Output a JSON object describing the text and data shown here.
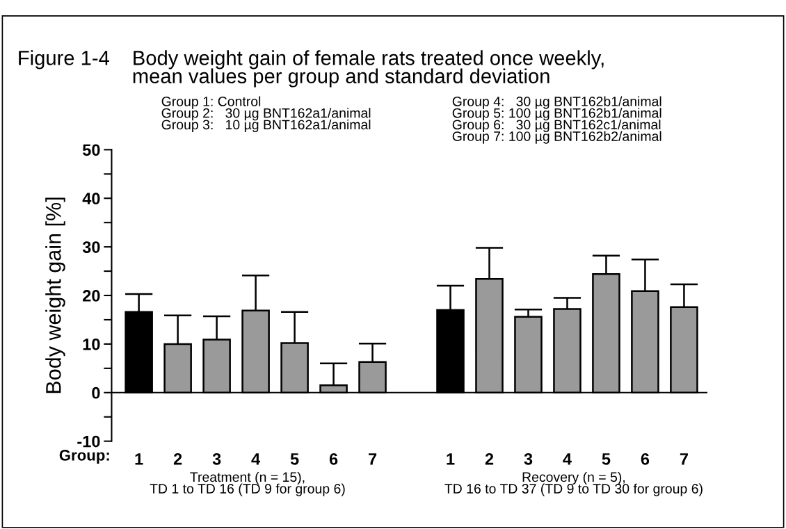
{
  "chart_data": {
    "type": "bar",
    "title": "Figure 1-4",
    "subtitle": "Body weight gain of female rats treated once weekly,\nmean values per group and standard deviation",
    "ylabel": "Body weight gain [%]",
    "xlabel": "Group:",
    "categories": [
      "1",
      "2",
      "3",
      "4",
      "5",
      "6",
      "7",
      null,
      "1",
      "2",
      "3",
      "4",
      "5",
      "6",
      "7"
    ],
    "values": [
      16.6,
      10.0,
      10.9,
      16.9,
      10.2,
      1.5,
      6.3,
      null,
      17.0,
      23.4,
      15.6,
      17.2,
      24.4,
      20.9,
      17.6
    ],
    "errors": [
      [
        16.6,
        20.3
      ],
      [
        10.0,
        15.9
      ],
      [
        10.9,
        15.7
      ],
      [
        16.9,
        24.1
      ],
      [
        10.2,
        16.6
      ],
      [
        1.5,
        6.0
      ],
      [
        6.3,
        10.1
      ],
      null,
      [
        17.0,
        22.0
      ],
      [
        23.4,
        29.8
      ],
      [
        15.6,
        17.1
      ],
      [
        17.2,
        19.5
      ],
      [
        24.4,
        28.2
      ],
      [
        20.9,
        27.4
      ],
      [
        17.6,
        22.3
      ]
    ],
    "legend": false,
    "colors": [
      "#000000",
      "#9a9a9a",
      "#9a9a9a",
      "#9a9a9a",
      "#9a9a9a",
      "#9a9a9a",
      "#9a9a9a",
      "#ffffff",
      "#000000",
      "#9a9a9a",
      "#9a9a9a",
      "#9a9a9a",
      "#9a9a9a",
      "#9a9a9a",
      "#9a9a9a"
    ],
    "ylim": [
      -10,
      50
    ],
    "yticks": [
      -10,
      0,
      10,
      20,
      30,
      40,
      50
    ],
    "ref_lines": [
      {
        "axis": "y",
        "value": 0,
        "label": null
      }
    ],
    "grid": false,
    "annotations": [
      "Group 1: Control\nGroup 2:   30 µg BNT162a1/animal\nGroup 3:   10 µg BNT162a1/animal",
      "Group 4:   30 µg BNT162b1/animal\nGroup 5: 100 µg BNT162b1/animal\nGroup 6:   30 µg BNT162c1/animal\nGroup 7: 100 µg BNT162b2/animal",
      "Treatment (n = 15),\nTD 1 to TD 16 (TD 9 for group 6)",
      "Recovery (n = 5),\nTD 16 to TD 37 (TD 9 to TD 30 for group 6)"
    ]
  }
}
